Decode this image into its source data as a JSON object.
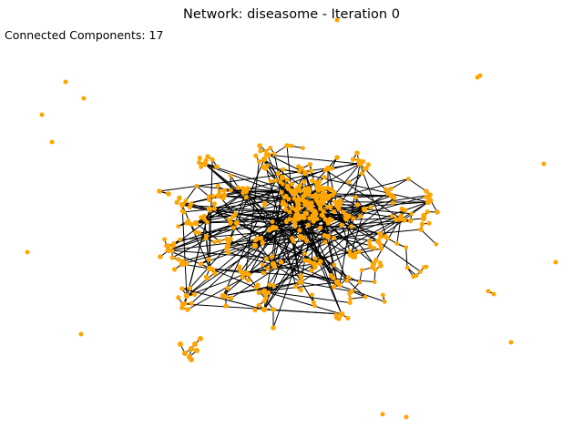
{
  "title": "Network: diseasome - Iteration 0",
  "stats": {
    "connected_components_label": "Connected Components: 17"
  },
  "colors": {
    "node": "#ffa500",
    "edge": "#000000",
    "background": "#ffffff"
  }
}
